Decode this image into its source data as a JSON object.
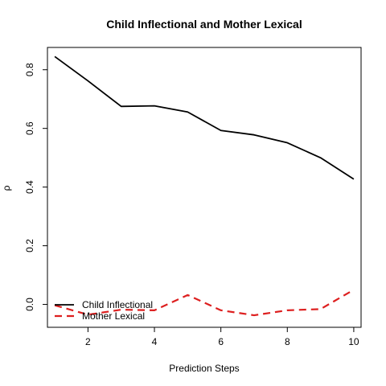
{
  "chart_data": {
    "type": "line",
    "title": "Child Inflectional and Mother Lexical",
    "xlabel": "Prediction Steps",
    "ylabel": "ρ",
    "xlim": [
      0.78,
      10.22
    ],
    "ylim": [
      -0.078,
      0.876
    ],
    "x_ticks": [
      2,
      4,
      6,
      8,
      10
    ],
    "y_ticks": [
      0.0,
      0.2,
      0.4,
      0.6,
      0.8
    ],
    "y_tick_labels": [
      "0.0",
      "0.2",
      "0.4",
      "0.6",
      "0.8"
    ],
    "grid": false,
    "legend_position": "bottom-left",
    "x": [
      1,
      2,
      3,
      4,
      5,
      6,
      7,
      8,
      9,
      10
    ],
    "series": [
      {
        "name": "Child Inflectional",
        "values": [
          0.845,
          0.762,
          0.675,
          0.677,
          0.656,
          0.593,
          0.578,
          0.551,
          0.5,
          0.427
        ],
        "color": "#000000",
        "line_style": "solid"
      },
      {
        "name": "Mother Lexical",
        "values": [
          -0.003,
          -0.035,
          -0.018,
          -0.02,
          0.032,
          -0.02,
          -0.037,
          -0.02,
          -0.016,
          0.05
        ],
        "color": "#dd1f1f",
        "line_style": "dashed"
      }
    ]
  }
}
